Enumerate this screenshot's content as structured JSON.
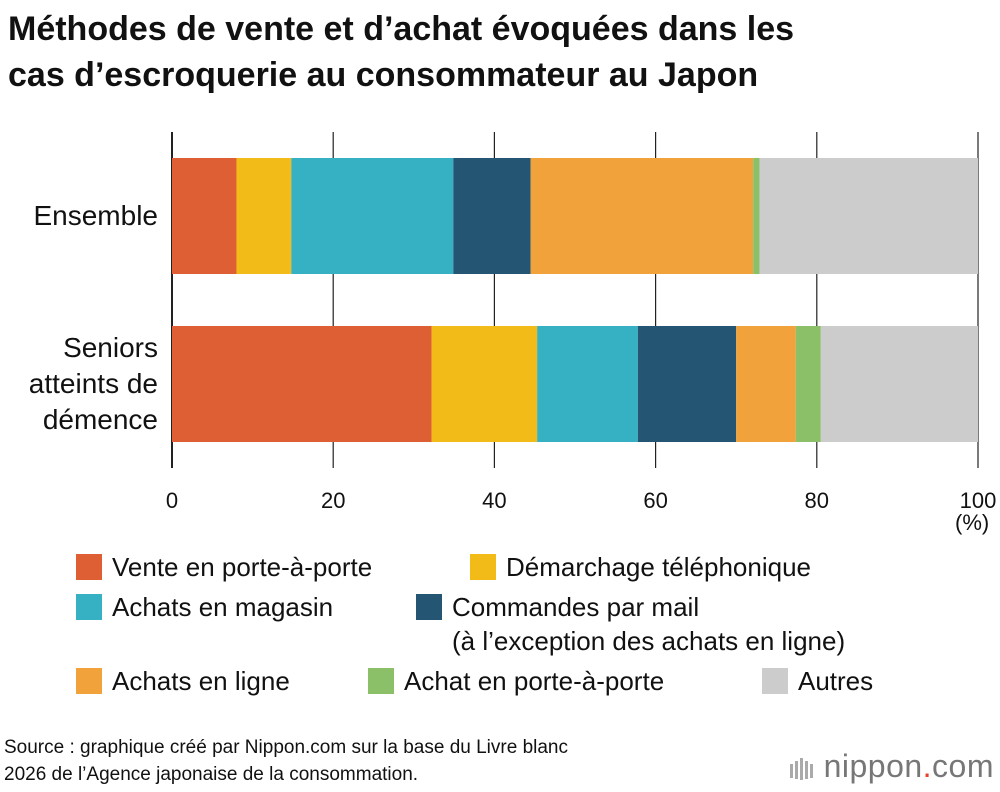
{
  "title_lines": [
    "Méthodes de vente et d’achat évoquées dans les",
    "cas d’escroquerie au consommateur au Japon"
  ],
  "unit": "(%)",
  "source_lines": [
    "Source : graphique créé par Nippon.com sur la base du Livre blanc",
    "2026 de l’Agence japonaise de la consommation."
  ],
  "logo": {
    "name": "nippon",
    "dot": ".",
    "suffix": "com"
  },
  "chart_data": {
    "type": "bar",
    "orientation": "horizontal",
    "stacked": true,
    "categories": [
      [
        "Ensemble"
      ],
      [
        "Seniors",
        "atteints de",
        "démence"
      ]
    ],
    "series": [
      {
        "name": "Vente en porte-à-porte",
        "color": "#dd5f33",
        "values": [
          8.0,
          32.2
        ]
      },
      {
        "name": "Démarchage téléphonique",
        "color": "#f2bb18",
        "values": [
          6.8,
          13.1
        ]
      },
      {
        "name": "Achats en magasin",
        "color": "#35b1c3",
        "values": [
          20.1,
          12.5
        ]
      },
      {
        "name": "Commandes par mail\n(à l’exception des achats en ligne)",
        "color": "#245673",
        "values": [
          9.6,
          12.2
        ]
      },
      {
        "name": "Achats en ligne",
        "color": "#f1a23b",
        "values": [
          27.6,
          7.4
        ]
      },
      {
        "name": "Achat en porte-à-porte",
        "color": "#8cc068",
        "values": [
          0.8,
          3.1
        ]
      },
      {
        "name": "Autres",
        "color": "#cccccc",
        "values": [
          27.1,
          19.5
        ]
      }
    ],
    "xlim": [
      0,
      100
    ],
    "xticks": [
      0,
      20,
      40,
      60,
      80,
      100
    ],
    "grid": true,
    "legend": "bottom"
  }
}
